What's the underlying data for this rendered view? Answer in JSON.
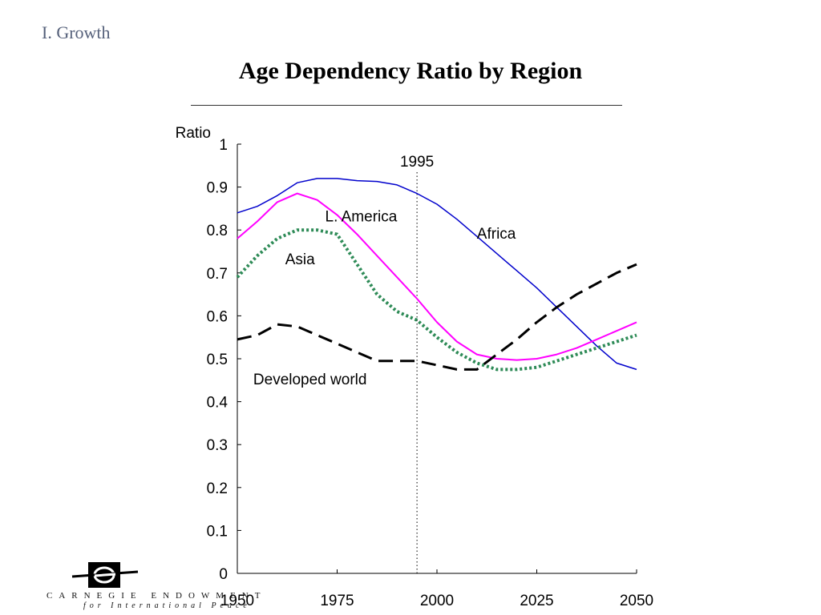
{
  "section_label": "I. Growth",
  "title": "Age Dependency Ratio by Region",
  "logo": {
    "line1": "CARNEGIE ENDOWMENT",
    "line2": "for International Peace"
  },
  "chart_data": {
    "type": "line",
    "title": "Age Dependency Ratio by Region",
    "ylabel": "Ratio",
    "xlabel": "",
    "xlim": [
      1950,
      2050
    ],
    "ylim": [
      0,
      1
    ],
    "x_ticks": [
      1950,
      1975,
      2000,
      2025,
      2050
    ],
    "y_ticks": [
      0,
      0.1,
      0.2,
      0.3,
      0.4,
      0.5,
      0.6,
      0.7,
      0.8,
      0.9,
      1
    ],
    "y_tick_labels": [
      "0",
      "0.1",
      "0.2",
      "0.3",
      "0.4",
      "0.5",
      "0.6",
      "0.7",
      "0.8",
      "0.9",
      "1"
    ],
    "x_tick_labels": [
      "1950",
      "1975",
      "2000",
      "2025",
      "2050"
    ],
    "grid": false,
    "reference_line": {
      "x": 1995,
      "label": "1995",
      "style": "dotted"
    },
    "series": [
      {
        "name": "Africa",
        "color": "#0000cc",
        "style": "solid",
        "x": [
          1950,
          1955,
          1960,
          1965,
          1970,
          1975,
          1980,
          1985,
          1990,
          1995,
          2000,
          2005,
          2010,
          2015,
          2020,
          2025,
          2030,
          2035,
          2040,
          2045,
          2050
        ],
        "y": [
          0.84,
          0.855,
          0.88,
          0.91,
          0.92,
          0.92,
          0.915,
          0.913,
          0.905,
          0.885,
          0.86,
          0.825,
          0.785,
          0.745,
          0.705,
          0.665,
          0.62,
          0.575,
          0.53,
          0.49,
          0.475
        ]
      },
      {
        "name": "L. America",
        "color": "#ff00ff",
        "style": "solid",
        "x": [
          1950,
          1955,
          1960,
          1965,
          1970,
          1975,
          1980,
          1985,
          1990,
          1995,
          2000,
          2005,
          2010,
          2015,
          2020,
          2025,
          2030,
          2035,
          2040,
          2045,
          2050
        ],
        "y": [
          0.78,
          0.82,
          0.865,
          0.885,
          0.87,
          0.835,
          0.79,
          0.74,
          0.69,
          0.64,
          0.585,
          0.54,
          0.51,
          0.5,
          0.497,
          0.5,
          0.51,
          0.525,
          0.545,
          0.565,
          0.585
        ]
      },
      {
        "name": "Asia",
        "color": "#2e8b57",
        "style": "dotted",
        "x": [
          1950,
          1955,
          1960,
          1965,
          1970,
          1975,
          1980,
          1985,
          1990,
          1995,
          2000,
          2005,
          2010,
          2015,
          2020,
          2025,
          2030,
          2035,
          2040,
          2045,
          2050
        ],
        "y": [
          0.69,
          0.74,
          0.78,
          0.8,
          0.8,
          0.79,
          0.72,
          0.65,
          0.61,
          0.59,
          0.55,
          0.515,
          0.49,
          0.475,
          0.475,
          0.48,
          0.495,
          0.51,
          0.525,
          0.54,
          0.555
        ]
      },
      {
        "name": "Developed world",
        "color": "#000000",
        "style": "dashed",
        "x": [
          1950,
          1955,
          1960,
          1965,
          1970,
          1975,
          1980,
          1985,
          1990,
          1995,
          2000,
          2005,
          2010,
          2015,
          2020,
          2025,
          2030,
          2035,
          2040,
          2045,
          2050
        ],
        "y": [
          0.545,
          0.555,
          0.58,
          0.575,
          0.555,
          0.535,
          0.515,
          0.495,
          0.495,
          0.495,
          0.485,
          0.475,
          0.475,
          0.51,
          0.545,
          0.585,
          0.62,
          0.65,
          0.675,
          0.7,
          0.72
        ]
      }
    ],
    "annotations": [
      {
        "text": "Africa",
        "x": 2010,
        "y": 0.78
      },
      {
        "text": "L. America",
        "x": 1972,
        "y": 0.82
      },
      {
        "text": "Asia",
        "x": 1962,
        "y": 0.72
      },
      {
        "text": "Developed world",
        "x": 1954,
        "y": 0.44
      }
    ]
  }
}
